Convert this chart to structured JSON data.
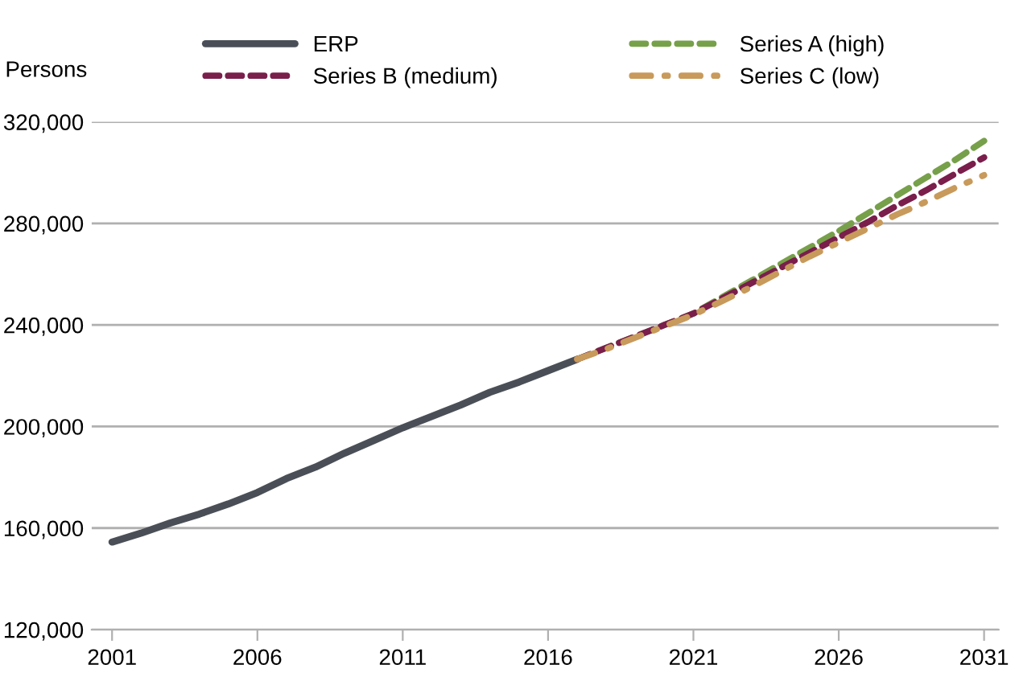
{
  "chart_data": {
    "type": "line",
    "ylabel": "Persons",
    "xlim": [
      2000.3,
      2031.5
    ],
    "xticks": [
      2001,
      2006,
      2011,
      2016,
      2021,
      2026,
      2031
    ],
    "ylim": [
      120000,
      320000
    ],
    "yticks": [
      {
        "value": 120000,
        "label": "120,000"
      },
      {
        "value": 160000,
        "label": "160,000"
      },
      {
        "value": 200000,
        "label": "200,000"
      },
      {
        "value": 240000,
        "label": "240,000"
      },
      {
        "value": 280000,
        "label": "280,000"
      },
      {
        "value": 320000,
        "label": "320,000"
      }
    ],
    "grid": "y",
    "legend": "top",
    "marker": "none",
    "series": [
      {
        "name": "ERP",
        "color": "#4a4f57",
        "line_style": "solid",
        "x": [
          2001,
          2002,
          2003,
          2004,
          2005,
          2006,
          2007,
          2008,
          2009,
          2010,
          2011,
          2012,
          2013,
          2014,
          2015,
          2016,
          2017
        ],
        "values": [
          154500,
          158000,
          162000,
          165500,
          169500,
          174000,
          179500,
          184000,
          189500,
          194500,
          199500,
          204000,
          208500,
          213500,
          217500,
          222000,
          226500
        ]
      },
      {
        "name": "Series A (high)",
        "color": "#77a04a",
        "line_style": "dashed",
        "x": [
          2017,
          2018,
          2019,
          2020,
          2021,
          2022,
          2023,
          2024,
          2025,
          2026,
          2027,
          2028,
          2029,
          2030,
          2031
        ],
        "values": [
          226500,
          231000,
          235500,
          240000,
          244500,
          251000,
          257500,
          264000,
          270500,
          277000,
          284000,
          291000,
          298000,
          305000,
          312500
        ]
      },
      {
        "name": "Series B (medium)",
        "color": "#7a1e4c",
        "line_style": "dashed",
        "x": [
          2017,
          2018,
          2019,
          2020,
          2021,
          2022,
          2023,
          2024,
          2025,
          2026,
          2027,
          2028,
          2029,
          2030,
          2031
        ],
        "values": [
          226500,
          231000,
          235500,
          240000,
          244500,
          250500,
          256500,
          262500,
          268500,
          274500,
          280500,
          287000,
          293000,
          299500,
          306000
        ]
      },
      {
        "name": "Series C (low)",
        "color": "#c89a5b",
        "line_style": "dashdot",
        "x": [
          2017,
          2018,
          2019,
          2020,
          2021,
          2022,
          2023,
          2024,
          2025,
          2026,
          2027,
          2028,
          2029,
          2030,
          2031
        ],
        "values": [
          226500,
          230500,
          235000,
          239500,
          244000,
          249500,
          255000,
          261000,
          267000,
          272500,
          278000,
          283500,
          288500,
          294000,
          299000
        ]
      }
    ]
  }
}
